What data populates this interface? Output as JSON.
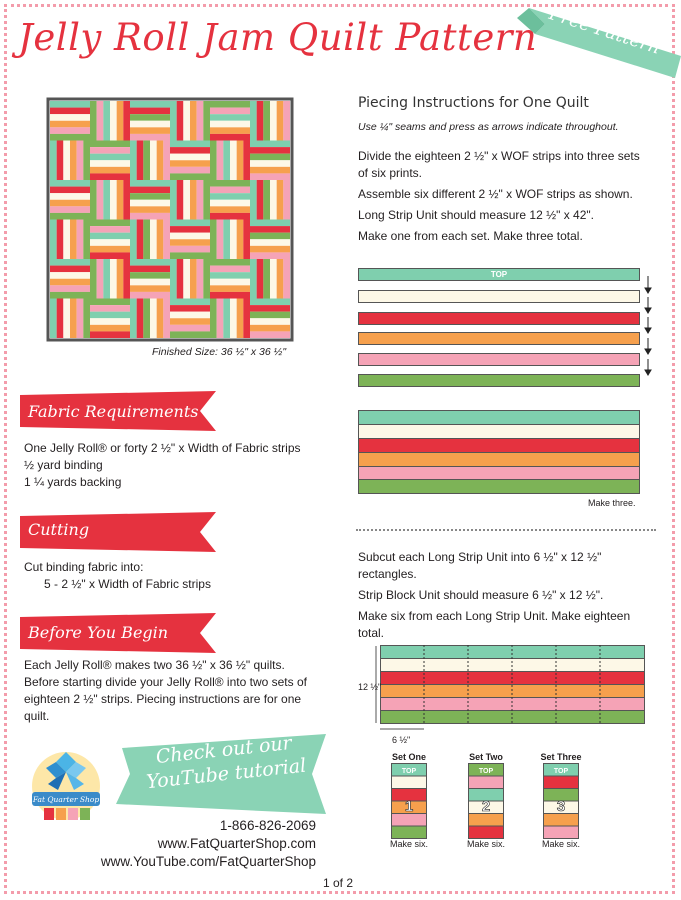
{
  "page": {
    "title": "Jelly Roll Jam Quilt Pattern",
    "free_banner": "Free Pattern",
    "page_number": "1 of 2"
  },
  "quilt_preview": {
    "caption": "Finished Size: 36 ½\" x 36 ½\""
  },
  "fabric_requirements": {
    "heading": "Fabric Requirements",
    "lines": [
      "One Jelly Roll® or forty 2 ½\" x Width of Fabric strips",
      "½ yard binding",
      "1 ¼ yards backing"
    ]
  },
  "cutting": {
    "heading": "Cutting",
    "lines": [
      "Cut binding fabric into:",
      "5 - 2 ½\" x Width of Fabric strips"
    ]
  },
  "before_you_begin": {
    "heading": "Before You Begin",
    "lines": [
      "Each Jelly Roll® makes two 36 ½\" x 36 ½\" quilts.",
      "Before starting divide your Jelly Roll® into two sets of",
      "eighteen 2 ½\" strips. Piecing instructions are for one",
      "quilt."
    ]
  },
  "youtube_banner": {
    "line1": "Check out our",
    "line2": "YouTube tutorial"
  },
  "contact": {
    "phone": "1-866-826-2069",
    "website": "www.FatQuarterShop.com",
    "youtube": "www.YouTube.com/FatQuarterShop",
    "logo_text": "Fat Quarter Shop"
  },
  "piecing": {
    "heading": "Piecing Instructions for One Quilt",
    "note": "Use ¼\" seams and press as arrows indicate throughout.",
    "p1": "Divide the eighteen 2 ½\" x WOF strips into three sets",
    "p1b": "of six prints.",
    "p2": "Assemble six different 2 ½\" x WOF strips as shown.",
    "p3": "Long Strip Unit should measure 12 ½\" x 42\".",
    "p4": "Make one from each set. Make three total.",
    "top_label": "TOP",
    "make_three": "Make three.",
    "p5": "Subcut each Long Strip Unit into 6 ½\" x 12 ½\"",
    "p5b": "rectangles.",
    "p6": "Strip Block Unit should measure 6 ½\" x 12 ½\".",
    "p7": "Make six from each Long Strip Unit. Make eighteen",
    "p7b": "total.",
    "dim_height": "12 ½\"",
    "dim_width": "6 ½\"",
    "sets": [
      {
        "name": "Set One",
        "number": "1",
        "note": "Make six."
      },
      {
        "name": "Set Two",
        "number": "2",
        "note": "Make six."
      },
      {
        "name": "Set Three",
        "number": "3",
        "note": "Make six."
      }
    ]
  },
  "colors": {
    "aqua": "#7fcfae",
    "cream": "#fdf8e7",
    "red": "#e5323f",
    "orange": "#f6a04d",
    "pink": "#f5a3b6",
    "green": "#7db357"
  }
}
